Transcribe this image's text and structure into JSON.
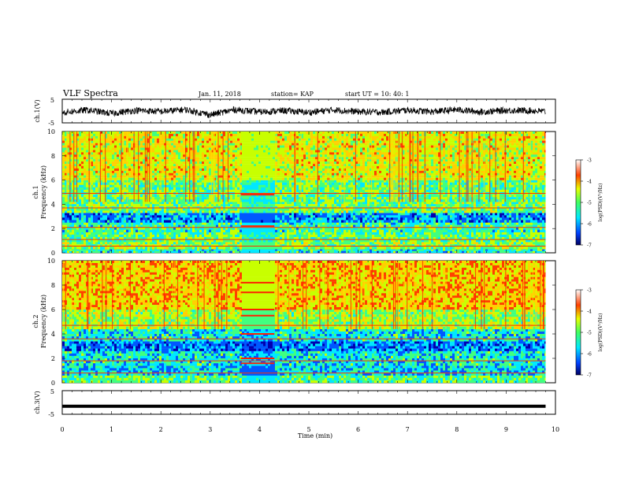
{
  "header": {
    "title": "VLF Spectra",
    "date": "Jan. 11, 2018",
    "station": "station= KAP",
    "start": "start  UT =   10: 40: 1"
  },
  "chart_data": [
    {
      "type": "line",
      "panel": "ch1-waveform",
      "ylabel": "ch.1(V)",
      "ylim": [
        -5,
        5
      ],
      "xlim": [
        0,
        10
      ],
      "yticks": [
        "5",
        "-5"
      ],
      "x": [
        0,
        0.5,
        1,
        1.5,
        2,
        2.5,
        3,
        3.5,
        4,
        4.5,
        5,
        5.5,
        6,
        6.5,
        7,
        7.5,
        8,
        8.5,
        9,
        9.5,
        9.8
      ],
      "values": [
        -0.6,
        0.4,
        -1.0,
        0.3,
        -0.2,
        0.6,
        -1.6,
        0.6,
        -0.4,
        0.2,
        -0.6,
        0.5,
        -0.3,
        -0.5,
        0.4,
        -0.3,
        0.6,
        -0.4,
        0.3,
        0.2,
        -0.2
      ],
      "color": "#000000"
    },
    {
      "type": "heatmap",
      "panel": "ch1-spectrogram",
      "ylabel": "ch.1\nFrequency  (kHz)",
      "ylim": [
        0,
        10
      ],
      "xlim": [
        0,
        10
      ],
      "data_xmax": 9.8,
      "yticks": [
        "0",
        "2",
        "4",
        "6",
        "8",
        "10"
      ],
      "clabel": "log(PSD)(V²/Hz)",
      "clim": [
        -7,
        -3
      ],
      "cticks": [
        "-3",
        "-4",
        "-5",
        "-6",
        "-7"
      ],
      "bands": [
        {
          "kHz": [
            0.0,
            0.3
          ],
          "level": -5.3
        },
        {
          "kHz": [
            0.3,
            0.9
          ],
          "level": -4.7
        },
        {
          "kHz": [
            0.9,
            1.7
          ],
          "level": -4.9
        },
        {
          "kHz": [
            1.7,
            2.5
          ],
          "level": -5.2
        },
        {
          "kHz": [
            2.5,
            3.3
          ],
          "level": -5.9
        },
        {
          "kHz": [
            3.3,
            4.2
          ],
          "level": -4.8
        },
        {
          "kHz": [
            4.2,
            6.0
          ],
          "level": -4.9
        },
        {
          "kHz": [
            6.0,
            10.0
          ],
          "level": -4.2
        }
      ],
      "quiet_interval_min": [
        3.62,
        4.3
      ],
      "quiet_lines_kHz": [
        2.2,
        4.8
      ],
      "lines_kHz": [
        0.55,
        1.1,
        2.1,
        3.7,
        4.9
      ]
    },
    {
      "type": "heatmap",
      "panel": "ch2-spectrogram",
      "ylabel": "ch.2\nFrequency  (kHz)",
      "ylim": [
        0,
        10
      ],
      "xlim": [
        0,
        10
      ],
      "data_xmax": 9.8,
      "yticks": [
        "0",
        "2",
        "4",
        "6",
        "8",
        "10"
      ],
      "clabel": "log(PSD)(V²/Hz)",
      "clim": [
        -7,
        -3
      ],
      "cticks": [
        "-3",
        "-4",
        "-5",
        "-6",
        "-7"
      ],
      "bands": [
        {
          "kHz": [
            0.0,
            0.6
          ],
          "level": -5.0
        },
        {
          "kHz": [
            0.6,
            1.4
          ],
          "level": -5.6
        },
        {
          "kHz": [
            1.4,
            2.6
          ],
          "level": -5.4
        },
        {
          "kHz": [
            2.6,
            3.4
          ],
          "level": -6.0
        },
        {
          "kHz": [
            3.4,
            4.4
          ],
          "level": -5.4
        },
        {
          "kHz": [
            4.4,
            6.0
          ],
          "level": -4.6
        },
        {
          "kHz": [
            6.0,
            10.0
          ],
          "level": -3.9
        }
      ],
      "quiet_interval_min": [
        3.62,
        4.3
      ],
      "quiet_lines_kHz": [
        1.6,
        2.0,
        4.0,
        5.5,
        6.0,
        7.4,
        8.2
      ],
      "lines_kHz": [
        0.8,
        1.8,
        3.6,
        4.7
      ]
    },
    {
      "type": "line",
      "panel": "ch3-waveform",
      "ylabel": "ch.3(V)",
      "ylim": [
        -5,
        5
      ],
      "xlim": [
        0,
        10
      ],
      "yticks": [
        "5",
        "-5"
      ],
      "x": [
        0,
        9.8
      ],
      "values": [
        -1.6,
        -1.6
      ],
      "color": "#000000"
    }
  ],
  "xaxis": {
    "label": "Time  (min)",
    "ticks": [
      "0",
      "1",
      "2",
      "3",
      "4",
      "5",
      "6",
      "7",
      "8",
      "9",
      "10"
    ]
  },
  "colorscale": [
    "#0000b0",
    "#0058ff",
    "#00e8ff",
    "#40ff80",
    "#c8ff00",
    "#ffd000",
    "#ff4000",
    "#ffffff"
  ]
}
